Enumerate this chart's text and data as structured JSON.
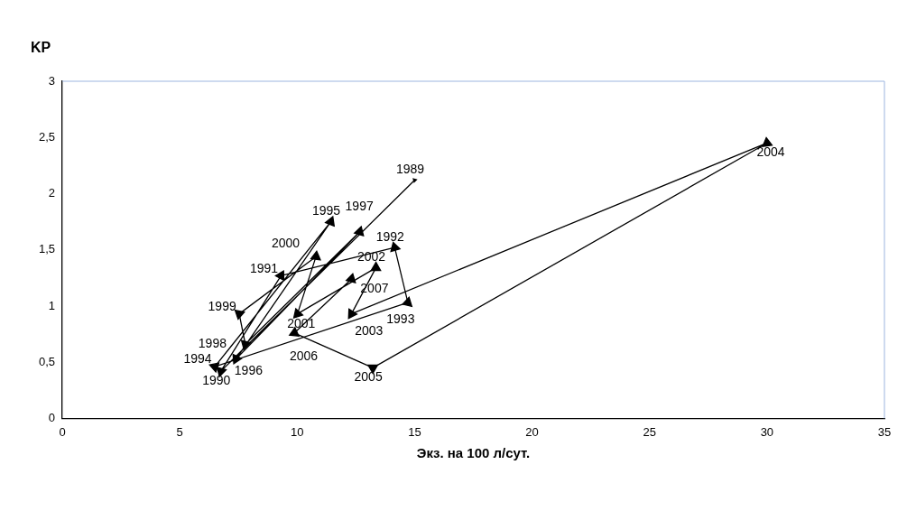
{
  "chart_data": {
    "type": "line",
    "xlabel": "Экз. на 100 л/сут.",
    "ylabel": "KP",
    "x": [
      15.0,
      6.75,
      9.31,
      14.15,
      14.71,
      6.49,
      11.43,
      7.4,
      12.66,
      7.79,
      7.53,
      10.8,
      10.01,
      13.35,
      12.31,
      30.0,
      13.22,
      9.88,
      12.31
    ],
    "series": [
      {
        "color": "#000000",
        "values": [
          2.12,
          0.42,
          1.27,
          1.52,
          1.03,
          0.46,
          1.75,
          0.53,
          1.66,
          0.66,
          0.93,
          1.44,
          0.93,
          1.34,
          0.93,
          2.45,
          0.45,
          0.76,
          1.24
        ]
      }
    ],
    "annotations": [
      {
        "text": "1989",
        "x": 15.0,
        "y": 2.12
      },
      {
        "text": "1990",
        "x": 6.75,
        "y": 0.42
      },
      {
        "text": "1991",
        "x": 9.31,
        "y": 1.27
      },
      {
        "text": "1992",
        "x": 14.15,
        "y": 1.52
      },
      {
        "text": "1993",
        "x": 14.71,
        "y": 1.03
      },
      {
        "text": "1994",
        "x": 6.49,
        "y": 0.46
      },
      {
        "text": "1995",
        "x": 11.43,
        "y": 1.75
      },
      {
        "text": "1996",
        "x": 7.4,
        "y": 0.53
      },
      {
        "text": "1997",
        "x": 12.66,
        "y": 1.66
      },
      {
        "text": "1998",
        "x": 7.79,
        "y": 0.66
      },
      {
        "text": "1999",
        "x": 7.53,
        "y": 0.93
      },
      {
        "text": "2000",
        "x": 10.8,
        "y": 1.44
      },
      {
        "text": "2001",
        "x": 10.01,
        "y": 0.93
      },
      {
        "text": "2002",
        "x": 13.35,
        "y": 1.34
      },
      {
        "text": "2003",
        "x": 12.31,
        "y": 0.93
      },
      {
        "text": "2004",
        "x": 30.0,
        "y": 2.45
      },
      {
        "text": "2005",
        "x": 13.22,
        "y": 0.45
      },
      {
        "text": "2006",
        "x": 9.88,
        "y": 0.76
      },
      {
        "text": "2007",
        "x": 12.31,
        "y": 1.24
      }
    ],
    "xlim": [
      0,
      35
    ],
    "xticks": [
      0,
      5,
      10,
      15,
      20,
      25,
      30,
      35
    ],
    "ylim": [
      0,
      3
    ],
    "yticks": [
      0,
      {
        "value": 0.5,
        "label": "0,5"
      },
      1,
      {
        "value": 1.5,
        "label": "1,5"
      },
      2,
      {
        "value": 2.5,
        "label": "2,5"
      },
      3
    ],
    "grid": false,
    "legend": false,
    "marker": "triangle",
    "line_style": "solid"
  }
}
